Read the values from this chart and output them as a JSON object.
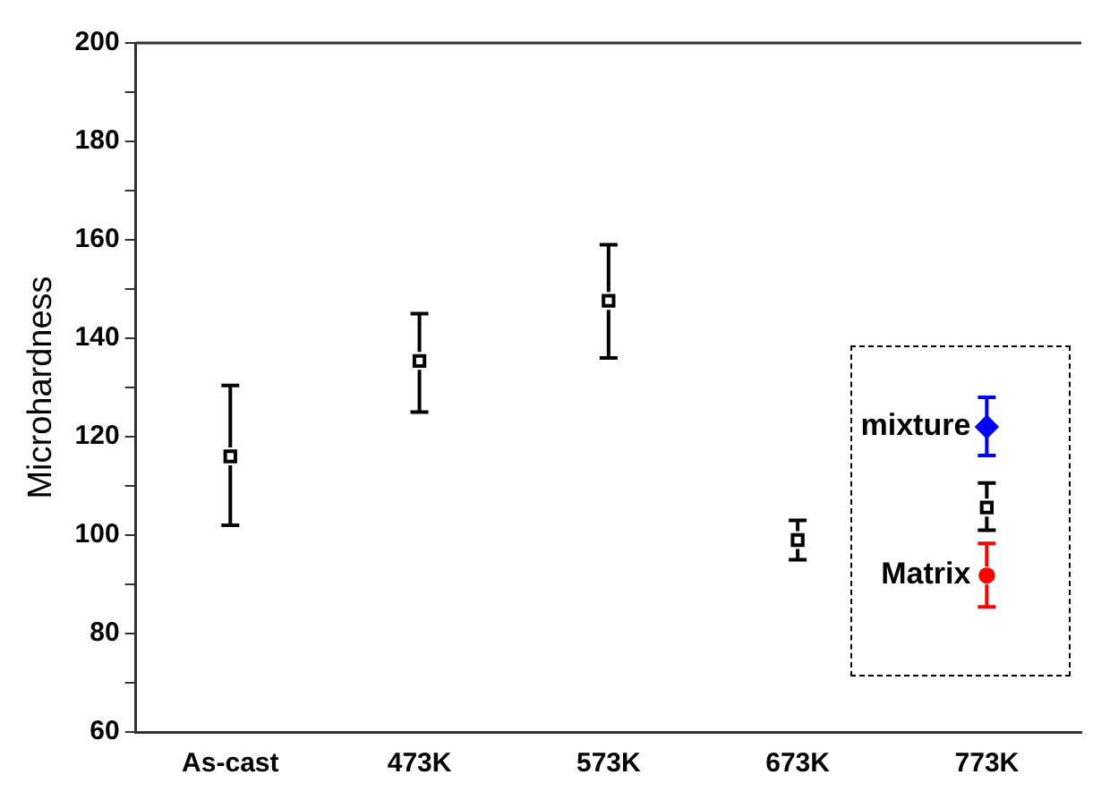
{
  "chart_data": {
    "type": "scatter",
    "ylabel": "Microhardness",
    "categories": [
      "As-cast",
      "473K",
      "573K",
      "673K",
      "773K"
    ],
    "ylim": [
      60,
      200
    ],
    "yticks": [
      60,
      {
        "value": 70,
        "label": null
      },
      80,
      {
        "value": 90,
        "label": null
      },
      100,
      {
        "value": 110,
        "label": null
      },
      120,
      {
        "value": 130,
        "label": null
      },
      140,
      {
        "value": 150,
        "label": null
      },
      160,
      {
        "value": 170,
        "label": null
      },
      180,
      {
        "value": 190,
        "label": null
      },
      200
    ],
    "grid": false,
    "legend": false,
    "series": [
      {
        "color": "#000000",
        "marker": "square",
        "values": [
          116,
          135.4,
          147.6,
          99,
          105.6
        ],
        "errors": [
          [
            102,
            130.4
          ],
          [
            125,
            145
          ],
          [
            136,
            159
          ],
          [
            95,
            103
          ],
          [
            101,
            110.6
          ]
        ]
      },
      {
        "name": "mixture",
        "color": "#0000ff",
        "marker": "diamond",
        "values": [
          null,
          null,
          null,
          null,
          122
        ],
        "errors": [
          null,
          null,
          null,
          null,
          [
            116.2,
            128
          ]
        ]
      },
      {
        "name": "Matrix",
        "color": "#ff0000",
        "marker": "circle",
        "values": [
          null,
          null,
          null,
          null,
          91.8
        ],
        "errors": [
          null,
          null,
          null,
          null,
          [
            85.4,
            98.3
          ]
        ]
      }
    ]
  }
}
